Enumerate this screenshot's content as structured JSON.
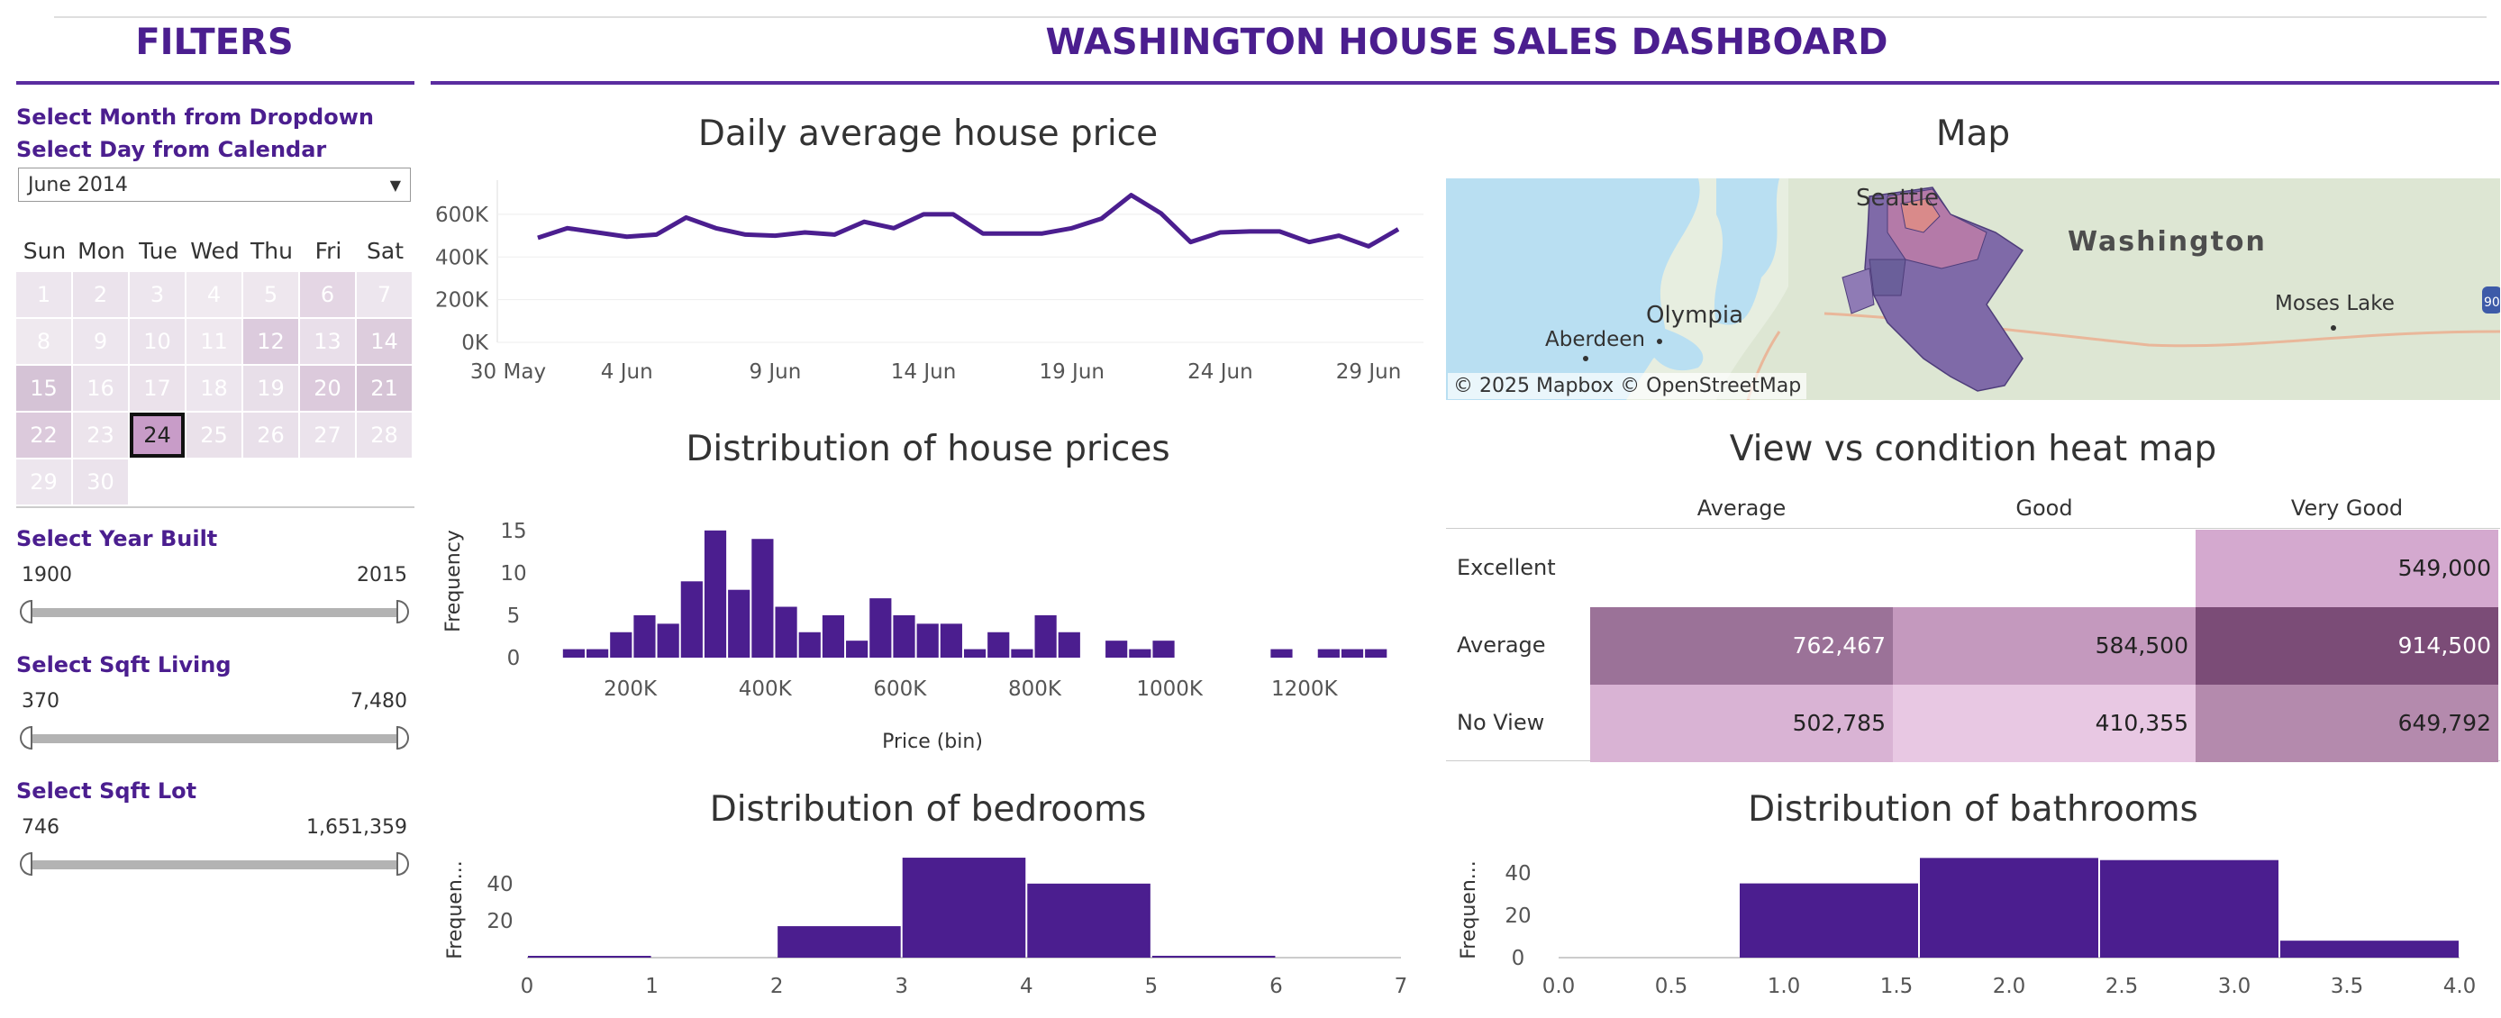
{
  "header": {
    "filters_title": "FILTERS",
    "dashboard_title": "WASHINGTON HOUSE SALES DASHBOARD"
  },
  "filters": {
    "month_label": "Select Month from Dropdown",
    "day_label": "Select Day from Calendar",
    "month_value": "June 2014",
    "weekdays": [
      "Sun",
      "Mon",
      "Tue",
      "Wed",
      "Thu",
      "Fri",
      "Sat"
    ],
    "days": [
      {
        "d": "1",
        "shade": "#ede6ee"
      },
      {
        "d": "2",
        "shade": "#ebe3ec"
      },
      {
        "d": "3",
        "shade": "#ede6ee"
      },
      {
        "d": "4",
        "shade": "#f0eaf0"
      },
      {
        "d": "5",
        "shade": "#eee7ee"
      },
      {
        "d": "6",
        "shade": "#e4d6e4"
      },
      {
        "d": "7",
        "shade": "#ede6ee"
      },
      {
        "d": "8",
        "shade": "#efe9ef"
      },
      {
        "d": "9",
        "shade": "#ede6ee"
      },
      {
        "d": "10",
        "shade": "#ebe3ec"
      },
      {
        "d": "11",
        "shade": "#efe8ef"
      },
      {
        "d": "12",
        "shade": "#dccbdd"
      },
      {
        "d": "13",
        "shade": "#e9dfea"
      },
      {
        "d": "14",
        "shade": "#ddcddd"
      },
      {
        "d": "15",
        "shade": "#d5c3d6"
      },
      {
        "d": "16",
        "shade": "#ebe3ec"
      },
      {
        "d": "17",
        "shade": "#ebe2eb"
      },
      {
        "d": "18",
        "shade": "#ede6ee"
      },
      {
        "d": "19",
        "shade": "#e8dfe9"
      },
      {
        "d": "20",
        "shade": "#dccadc"
      },
      {
        "d": "21",
        "shade": "#d6c4d6"
      },
      {
        "d": "22",
        "shade": "#dccadc"
      },
      {
        "d": "23",
        "shade": "#ece4ec"
      },
      {
        "d": "24",
        "shade": "#c89cc8",
        "selected": true
      },
      {
        "d": "25",
        "shade": "#eae1ea"
      },
      {
        "d": "26",
        "shade": "#e9e0ea"
      },
      {
        "d": "27",
        "shade": "#ebe3ec"
      },
      {
        "d": "28",
        "shade": "#ebe3ec"
      },
      {
        "d": "29",
        "shade": "#ede6ee"
      },
      {
        "d": "30",
        "shade": "#ebe3ec"
      }
    ],
    "year_built": {
      "label": "Select Year Built",
      "min": "1900",
      "max": "2015"
    },
    "sqft_living": {
      "label": "Select Sqft Living",
      "min": "370",
      "max": "7,480"
    },
    "sqft_lot": {
      "label": "Select Sqft Lot",
      "min": "746",
      "max": "1,651,359"
    }
  },
  "charts": {
    "daily_title": "Daily average house price",
    "map_title": "Map",
    "dist_price_title": "Distribution of house prices",
    "heatmap_title": "View vs condition heat map",
    "dist_bed_title": "Distribution of bedrooms",
    "dist_bath_title": "Distribution of bathrooms"
  },
  "map": {
    "labels": {
      "seattle": "Seattle",
      "washington": "Washington",
      "olympia": "Olympia",
      "aberdeen": "Aberdeen",
      "moses_lake": "Moses Lake",
      "shield": "90"
    },
    "attribution": "© 2025 Mapbox  © OpenStreetMap"
  },
  "chart_data": [
    {
      "type": "line",
      "name": "daily",
      "yticks": [
        "600K",
        "400K",
        "200K",
        "0K"
      ],
      "ytick_values": [
        600000,
        400000,
        200000,
        0
      ],
      "ylim": [
        0,
        760000
      ],
      "xticks": [
        "30 May",
        "4 Jun",
        "9 Jun",
        "14 Jun",
        "19 Jun",
        "24 Jun",
        "29 Jun"
      ],
      "xtick_index": [
        0,
        4,
        9,
        14,
        19,
        24,
        29
      ],
      "x": [
        1,
        2,
        3,
        4,
        5,
        6,
        7,
        8,
        9,
        10,
        11,
        12,
        13,
        14,
        15,
        16,
        17,
        18,
        19,
        20,
        21,
        22,
        23,
        24,
        25,
        26,
        27,
        28,
        29,
        30
      ],
      "values": [
        490000,
        535000,
        515000,
        495000,
        505000,
        585000,
        535000,
        505000,
        500000,
        515000,
        505000,
        565000,
        535000,
        600000,
        600000,
        510000,
        510000,
        510000,
        535000,
        580000,
        690000,
        605000,
        470000,
        515000,
        520000,
        520000,
        470000,
        500000,
        450000,
        530000
      ],
      "color": "#4b1e8f"
    },
    {
      "type": "bar",
      "name": "price_distribution",
      "xlabel": "Price (bin)",
      "ylabel": "Frequency",
      "yticks": [
        15,
        10,
        5,
        0
      ],
      "ylim": [
        0,
        17
      ],
      "xticks": [
        "200K",
        "400K",
        "600K",
        "800K",
        "1000K",
        "1200K"
      ],
      "xtick_values": [
        200000,
        400000,
        600000,
        800000,
        1000000,
        1200000
      ],
      "bin_width": 35000,
      "bin_start": 100000,
      "values": [
        1,
        1,
        3,
        5,
        4,
        9,
        15,
        8,
        14,
        6,
        3,
        5,
        2,
        7,
        5,
        4,
        4,
        1,
        3,
        1,
        5,
        3,
        0,
        2,
        1,
        2,
        0,
        0,
        0,
        0,
        1,
        0,
        1,
        1,
        1
      ],
      "color": "#4b1e8f"
    },
    {
      "type": "bar",
      "name": "bedrooms",
      "ylabel": "Frequen...",
      "yticks": [
        40,
        20
      ],
      "ylim": [
        0,
        55
      ],
      "xticks": [
        "0",
        "1",
        "2",
        "3",
        "4",
        "5",
        "6",
        "7"
      ],
      "bins": [
        [
          0,
          1,
          0.5
        ],
        [
          1,
          2,
          0
        ],
        [
          2,
          3,
          17
        ],
        [
          3,
          4,
          54
        ],
        [
          4,
          5,
          40
        ],
        [
          5,
          6,
          1
        ],
        [
          6,
          7,
          0
        ]
      ],
      "color": "#4b1e8f"
    },
    {
      "type": "bar",
      "name": "bathrooms",
      "ylabel": "Frequen...",
      "yticks": [
        40,
        20,
        0
      ],
      "ylim": [
        0,
        48
      ],
      "xticks": [
        "0.0",
        "0.5",
        "1.0",
        "1.5",
        "2.0",
        "2.5",
        "3.0",
        "3.5",
        "4.0"
      ],
      "bins": [
        [
          0,
          0.8,
          0
        ],
        [
          0.8,
          1.6,
          35
        ],
        [
          1.6,
          2.4,
          47
        ],
        [
          2.4,
          3.2,
          46
        ],
        [
          3.2,
          4.0,
          8
        ]
      ],
      "color": "#4b1e8f"
    },
    {
      "type": "heatmap",
      "name": "view_vs_condition",
      "columns": [
        "Average",
        "Good",
        "Very Good"
      ],
      "rows": [
        "Excellent",
        "Average",
        "No View"
      ],
      "values": [
        [
          "",
          "",
          "549,000"
        ],
        [
          "762,467",
          "584,500",
          "914,500"
        ],
        [
          "502,785",
          "410,355",
          "649,792"
        ]
      ],
      "colors": [
        [
          "#ffffff",
          "#ffffff",
          "#d4a9cf"
        ],
        [
          "#9b7298",
          "#c499be",
          "#7b4c77"
        ],
        [
          "#d9b3d4",
          "#e8c8e3",
          "#b48aad"
        ]
      ],
      "text_colors": [
        [
          "#333",
          "#333",
          "#222"
        ],
        [
          "#fff",
          "#222",
          "#fff"
        ],
        [
          "#222",
          "#222",
          "#222"
        ]
      ]
    }
  ]
}
